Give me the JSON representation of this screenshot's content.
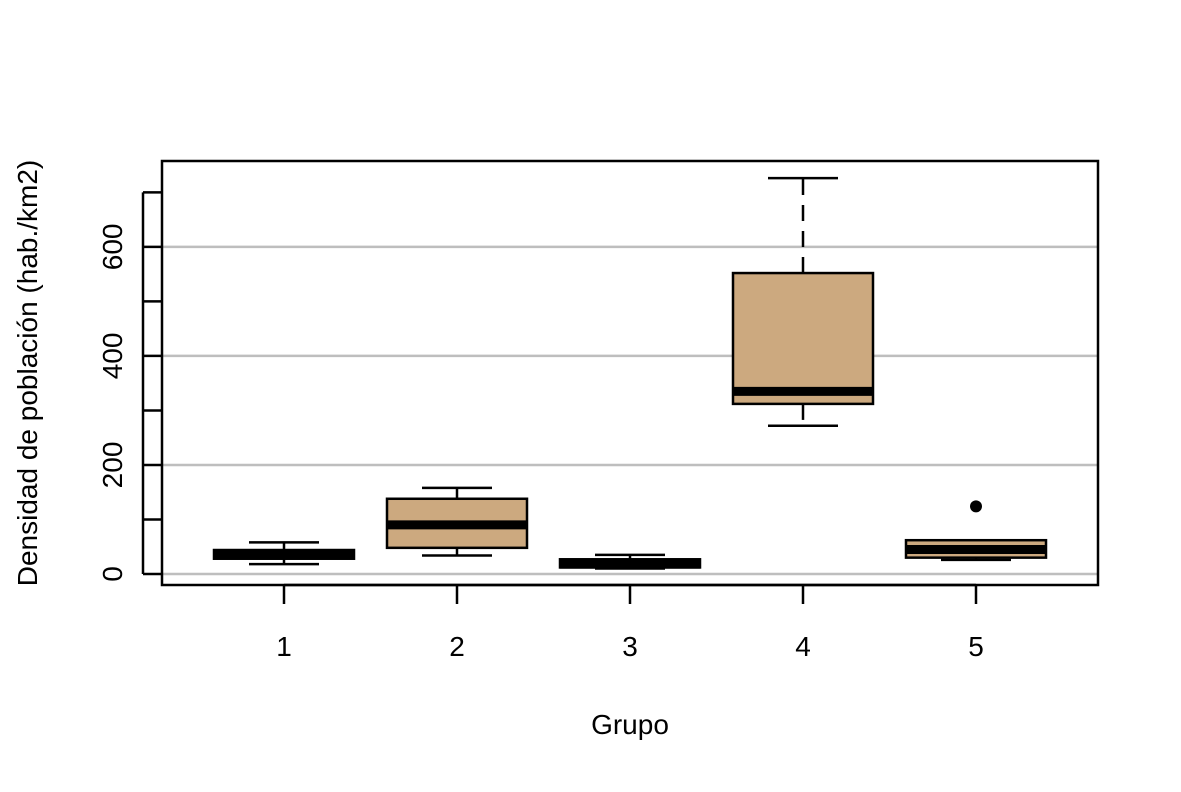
{
  "chart_data": {
    "type": "boxplot",
    "title": "",
    "xlabel": "Grupo",
    "ylabel": "Densidad de población (hab./km2)",
    "categories": [
      "1",
      "2",
      "3",
      "4",
      "5"
    ],
    "ylim": [
      -20,
      760
    ],
    "y_tick_values": [
      0,
      200,
      400,
      600
    ],
    "y_minor_tick_values": [
      100,
      300,
      500,
      700
    ],
    "y_tick_labels": [
      "0",
      "200",
      "400",
      "600"
    ],
    "gridlines_y": [
      0,
      200,
      400,
      600
    ],
    "grid": "horizontal",
    "box_fill": "#CCA97F",
    "grid_color": "#BEBEBE",
    "boxes": [
      {
        "category": "1",
        "whisker_low": 18,
        "q1": 28,
        "median": 35,
        "q3": 44,
        "whisker_high": 58,
        "outliers": []
      },
      {
        "category": "2",
        "whisker_low": 34,
        "q1": 48,
        "median": 90,
        "q3": 138,
        "whisker_high": 158,
        "outliers": []
      },
      {
        "category": "3",
        "whisker_low": 10,
        "q1": 12,
        "median": 18,
        "q3": 27,
        "whisker_high": 35,
        "outliers": []
      },
      {
        "category": "4",
        "whisker_low": 272,
        "q1": 312,
        "median": 335,
        "q3": 552,
        "whisker_high": 726,
        "outliers": []
      },
      {
        "category": "5",
        "whisker_low": 26,
        "q1": 30,
        "median": 45,
        "q3": 62,
        "whisker_high": 62,
        "outliers": [
          124
        ]
      }
    ]
  }
}
